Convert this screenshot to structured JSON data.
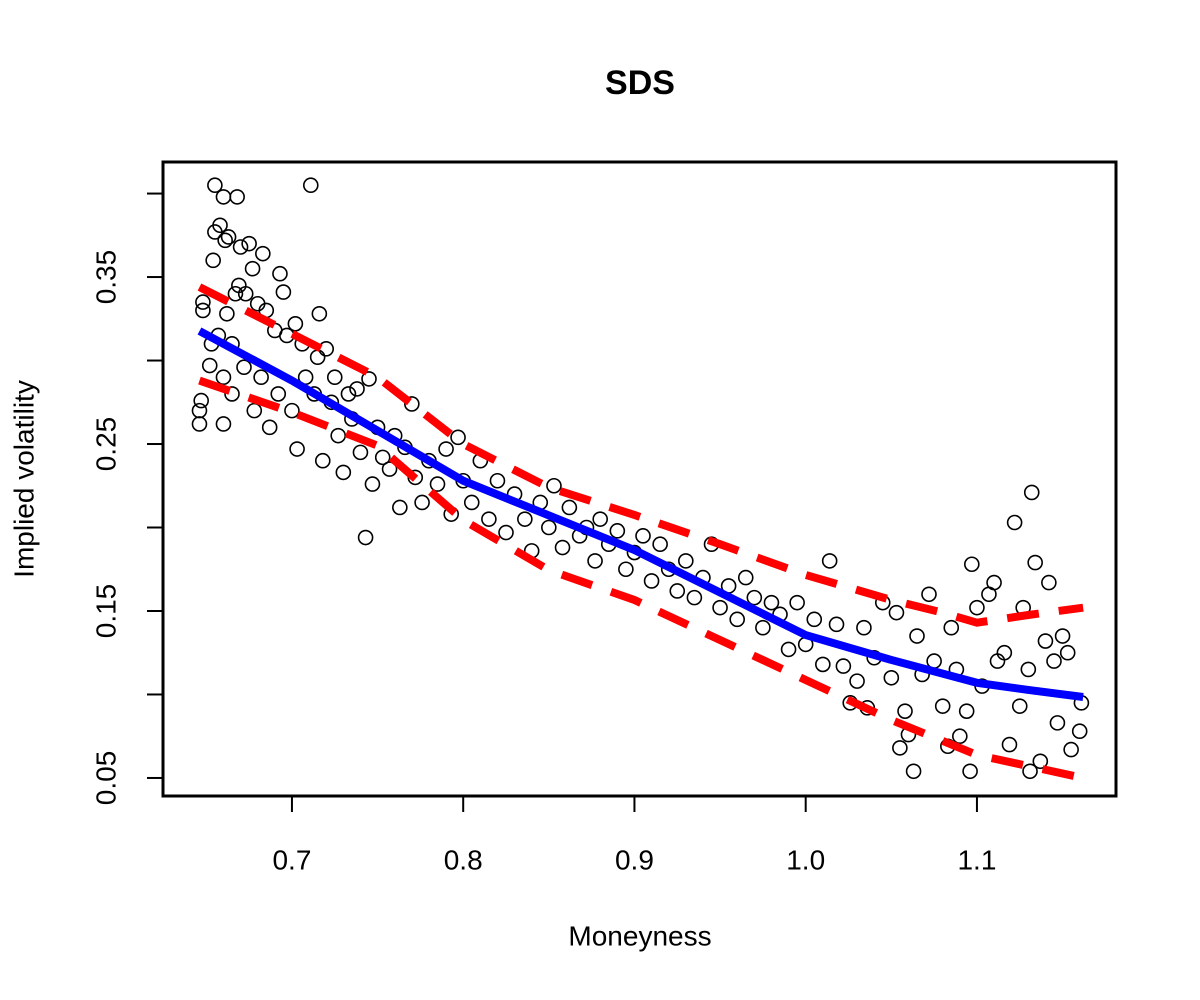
{
  "chart_data": {
    "type": "scatter",
    "title": "SDS",
    "xlabel": "Moneyness",
    "ylabel": "Implied volatility",
    "xlim": [
      0.6247,
      1.1812
    ],
    "ylim": [
      0.0392,
      0.4189
    ],
    "xticks": [
      0.7,
      0.8,
      0.9,
      {
        "value": 1.0,
        "label": "1.0"
      },
      1.1
    ],
    "yticks": [
      0.05,
      {
        "value": 0.1,
        "label": null
      },
      0.15,
      {
        "value": 0.2,
        "label": null
      },
      0.25,
      {
        "value": 0.3,
        "label": null
      },
      0.35,
      {
        "value": 0.4,
        "label": null
      }
    ],
    "points": {
      "color": "#000000",
      "x": [
        0.646,
        0.646,
        0.647,
        0.648,
        0.648,
        0.652,
        0.653,
        0.654,
        0.655,
        0.655,
        0.657,
        0.658,
        0.66,
        0.66,
        0.66,
        0.661,
        0.662,
        0.663,
        0.665,
        0.665,
        0.667,
        0.668,
        0.669,
        0.67,
        0.672,
        0.673,
        0.675,
        0.677,
        0.678,
        0.68,
        0.682,
        0.683,
        0.685,
        0.687,
        0.69,
        0.692,
        0.693,
        0.695,
        0.697,
        0.7,
        0.702,
        0.703,
        0.706,
        0.708,
        0.711,
        0.713,
        0.715,
        0.716,
        0.718,
        0.72,
        0.723,
        0.725,
        0.727,
        0.73,
        0.733,
        0.735,
        0.738,
        0.74,
        0.743,
        0.745,
        0.747,
        0.75,
        0.753,
        0.757,
        0.76,
        0.763,
        0.766,
        0.77,
        0.772,
        0.776,
        0.78,
        0.785,
        0.79,
        0.793,
        0.797,
        0.8,
        0.805,
        0.81,
        0.815,
        0.82,
        0.825,
        0.83,
        0.836,
        0.84,
        0.845,
        0.85,
        0.853,
        0.858,
        0.862,
        0.868,
        0.872,
        0.877,
        0.88,
        0.885,
        0.89,
        0.895,
        0.9,
        0.905,
        0.91,
        0.915,
        0.92,
        0.925,
        0.93,
        0.935,
        0.94,
        0.945,
        0.95,
        0.955,
        0.96,
        0.965,
        0.97,
        0.975,
        0.98,
        0.985,
        0.99,
        0.995,
        1.0,
        1.005,
        1.01,
        1.014,
        1.018,
        1.022,
        1.026,
        1.03,
        1.034,
        1.036,
        1.04,
        1.045,
        1.05,
        1.053,
        1.055,
        1.058,
        1.06,
        1.063,
        1.065,
        1.068,
        1.072,
        1.075,
        1.08,
        1.083,
        1.085,
        1.088,
        1.09,
        1.094,
        1.096,
        1.097,
        1.1,
        1.103,
        1.107,
        1.11,
        1.112,
        1.116,
        1.119,
        1.122,
        1.125,
        1.127,
        1.13,
        1.131,
        1.132,
        1.134,
        1.137,
        1.14,
        1.142,
        1.145,
        1.147,
        1.15,
        1.153,
        1.155,
        1.16,
        1.161
      ],
      "values": [
        0.262,
        0.27,
        0.276,
        0.33,
        0.335,
        0.297,
        0.31,
        0.36,
        0.377,
        0.405,
        0.315,
        0.381,
        0.262,
        0.29,
        0.398,
        0.372,
        0.328,
        0.374,
        0.31,
        0.28,
        0.34,
        0.398,
        0.345,
        0.368,
        0.296,
        0.34,
        0.37,
        0.355,
        0.27,
        0.334,
        0.29,
        0.364,
        0.33,
        0.26,
        0.318,
        0.28,
        0.352,
        0.341,
        0.315,
        0.27,
        0.322,
        0.247,
        0.31,
        0.29,
        0.405,
        0.28,
        0.302,
        0.328,
        0.24,
        0.307,
        0.275,
        0.29,
        0.255,
        0.233,
        0.28,
        0.265,
        0.283,
        0.245,
        0.194,
        0.289,
        0.226,
        0.26,
        0.242,
        0.235,
        0.255,
        0.212,
        0.248,
        0.274,
        0.23,
        0.215,
        0.24,
        0.226,
        0.247,
        0.208,
        0.254,
        0.228,
        0.215,
        0.24,
        0.205,
        0.228,
        0.197,
        0.22,
        0.205,
        0.186,
        0.215,
        0.2,
        0.225,
        0.188,
        0.212,
        0.195,
        0.2,
        0.18,
        0.205,
        0.19,
        0.198,
        0.175,
        0.185,
        0.195,
        0.168,
        0.19,
        0.175,
        0.162,
        0.18,
        0.158,
        0.17,
        0.19,
        0.152,
        0.165,
        0.145,
        0.17,
        0.158,
        0.14,
        0.155,
        0.148,
        0.127,
        0.155,
        0.13,
        0.145,
        0.118,
        0.18,
        0.142,
        0.117,
        0.095,
        0.108,
        0.14,
        0.092,
        0.122,
        0.155,
        0.11,
        0.149,
        0.068,
        0.09,
        0.076,
        0.054,
        0.135,
        0.112,
        0.16,
        0.12,
        0.093,
        0.069,
        0.14,
        0.115,
        0.075,
        0.09,
        0.054,
        0.178,
        0.152,
        0.105,
        0.16,
        0.167,
        0.12,
        0.125,
        0.07,
        0.203,
        0.093,
        0.152,
        0.115,
        0.054,
        0.221,
        0.179,
        0.06,
        0.132,
        0.167,
        0.12,
        0.083,
        0.135,
        0.125,
        0.067,
        0.078,
        0.095
      ]
    },
    "lines": [
      {
        "color": "#ff0000",
        "dashed": true,
        "x": [
          0.646,
          0.7,
          0.75,
          0.8,
          0.85,
          0.9,
          0.95,
          1.0,
          1.05,
          1.08,
          1.1,
          1.13,
          1.162
        ],
        "values": [
          0.344,
          0.316,
          0.29,
          0.25,
          0.224,
          0.2075,
          0.19,
          0.1716,
          0.1566,
          0.149,
          0.143,
          0.1476,
          0.152
        ]
      },
      {
        "color": "#ff0000",
        "dashed": true,
        "x": [
          0.646,
          0.7,
          0.75,
          0.8,
          0.85,
          0.9,
          0.95,
          1.0,
          1.05,
          1.1,
          1.162
        ],
        "values": [
          0.288,
          0.269,
          0.249,
          0.2045,
          0.1745,
          0.1566,
          0.1326,
          0.1087,
          0.0847,
          0.0638,
          0.05
        ]
      },
      {
        "color": "#0000ff",
        "dashed": false,
        "x": [
          0.646,
          0.7,
          0.8,
          0.9,
          1.0,
          1.05,
          1.1,
          1.13,
          1.162
        ],
        "values": [
          0.3177,
          0.288,
          0.228,
          0.1865,
          0.1356,
          0.1207,
          0.107,
          0.1027,
          0.0985
        ]
      }
    ]
  }
}
